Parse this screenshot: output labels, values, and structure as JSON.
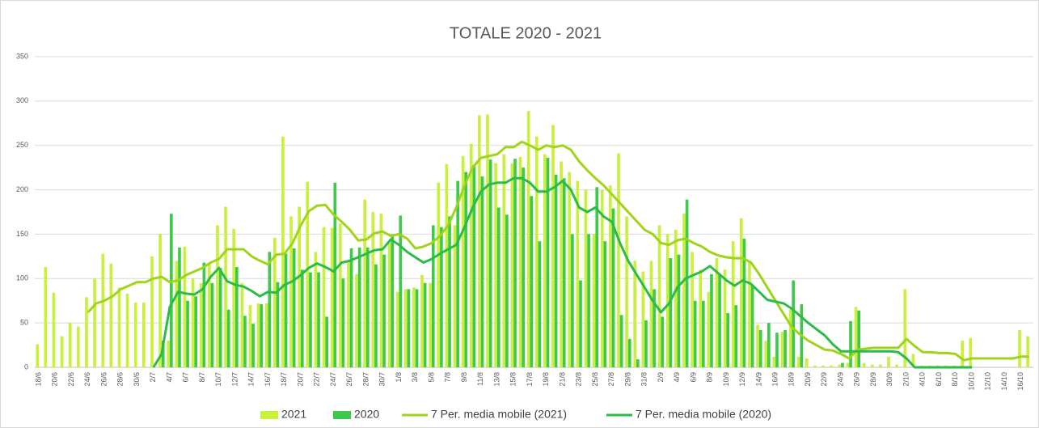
{
  "chart_data": {
    "type": "bar",
    "title": "TOTALE 2020 - 2021",
    "categories": [
      "18/6",
      null,
      "20/6",
      null,
      "22/6",
      null,
      "24/6",
      null,
      "26/6",
      null,
      "28/6",
      null,
      "30/6",
      null,
      "2/7",
      null,
      "4/7",
      null,
      "6/7",
      null,
      "8/7",
      null,
      "10/7",
      null,
      "12/7",
      null,
      "14/7",
      null,
      "16/7",
      null,
      "18/7",
      null,
      "20/7",
      null,
      "22/7",
      null,
      "24/7",
      null,
      "26/7",
      null,
      "28/7",
      null,
      "30/7",
      null,
      "1/8",
      null,
      "3/8",
      null,
      "5/8",
      null,
      "7/8",
      null,
      "9/8",
      null,
      "11/8",
      null,
      "13/8",
      null,
      "15/8",
      null,
      "17/8",
      null,
      "19/8",
      null,
      "21/8",
      null,
      "23/8",
      null,
      "25/8",
      null,
      "27/8",
      null,
      "29/8",
      null,
      "31/8",
      null,
      "2/9",
      null,
      "4/9",
      null,
      "6/9",
      null,
      "8/9",
      null,
      "10/9",
      null,
      "12/9",
      null,
      "14/9",
      null,
      "16/9",
      null,
      "18/9",
      null,
      "20/9",
      null,
      "22/9",
      null,
      "24/9",
      null,
      "26/9",
      null,
      "28/9",
      null,
      "30/9",
      null,
      "2/10",
      null,
      "4/10",
      null,
      "6/10",
      null,
      "8/10",
      null,
      "10/10",
      null,
      "12/10",
      null,
      "14/10",
      null,
      "16/10",
      null
    ],
    "series": [
      {
        "name": "2021",
        "type": "bar",
        "color": "#c8f03c",
        "values": [
          26,
          113,
          84,
          35,
          50,
          46,
          79,
          100,
          128,
          117,
          90,
          83,
          73,
          73,
          125,
          150,
          30,
          120,
          136,
          100,
          95,
          118,
          160,
          181,
          156,
          95,
          70,
          72,
          72,
          146,
          260,
          170,
          181,
          209,
          130,
          158,
          157,
          162,
          120,
          105,
          189,
          175,
          173,
          140,
          85,
          88,
          90,
          104,
          95,
          208,
          229,
          160,
          238,
          252,
          284,
          285,
          230,
          240,
          230,
          237,
          289,
          260,
          240,
          273,
          232,
          220,
          210,
          200,
          150,
          200,
          205,
          241,
          170,
          120,
          108,
          120,
          160,
          150,
          155,
          173,
          130,
          110,
          85,
          123,
          110,
          142,
          168,
          120,
          48,
          30,
          12,
          40,
          65,
          12,
          10,
          2,
          2,
          2,
          3,
          5,
          68,
          5,
          3,
          3,
          12,
          3,
          88,
          15,
          2,
          2,
          2,
          2,
          2,
          30,
          33,
          0,
          0,
          0,
          0,
          0,
          42,
          35
        ]
      },
      {
        "name": "2020",
        "type": "bar",
        "color": "#3ec94a",
        "values": [
          null,
          null,
          null,
          null,
          null,
          null,
          null,
          null,
          null,
          null,
          null,
          null,
          null,
          null,
          null,
          30,
          173,
          135,
          75,
          80,
          118,
          95,
          112,
          65,
          113,
          58,
          49,
          71,
          130,
          96,
          128,
          134,
          110,
          107,
          107,
          57,
          208,
          100,
          134,
          135,
          135,
          116,
          127,
          150,
          171,
          88,
          88,
          95,
          160,
          158,
          170,
          210,
          220,
          228,
          215,
          234,
          180,
          172,
          235,
          225,
          193,
          142,
          236,
          217,
          213,
          150,
          98,
          150,
          203,
          142,
          179,
          59,
          32,
          9,
          53,
          88,
          57,
          123,
          127,
          189,
          75,
          75,
          105,
          105,
          61,
          70,
          145,
          93,
          42,
          50,
          39,
          42,
          98,
          71,
          0,
          0,
          0,
          0,
          5,
          52,
          64,
          0,
          0,
          0,
          0,
          0,
          0,
          0,
          0,
          0,
          0,
          0,
          0,
          0,
          0,
          0,
          0,
          0,
          0,
          0,
          0,
          0
        ]
      },
      {
        "name": "7 Per. media mobile (2021)",
        "type": "line",
        "color": "#9fd41a",
        "values": [
          null,
          null,
          null,
          null,
          null,
          null,
          62,
          72,
          75,
          80,
          88,
          92,
          96,
          96,
          100,
          102,
          96,
          98,
          104,
          108,
          112,
          118,
          122,
          133,
          133,
          133,
          125,
          120,
          116,
          127,
          128,
          140,
          160,
          176,
          182,
          183,
          172,
          164,
          155,
          143,
          144,
          151,
          153,
          148,
          150,
          145,
          134,
          136,
          140,
          148,
          160,
          180,
          205,
          225,
          236,
          238,
          240,
          248,
          248,
          254,
          250,
          245,
          250,
          248,
          250,
          245,
          232,
          222,
          213,
          205,
          195,
          185,
          175,
          165,
          155,
          150,
          140,
          138,
          143,
          145,
          140,
          136,
          130,
          126,
          124,
          123,
          123,
          118,
          105,
          90,
          75,
          60,
          45,
          37,
          30,
          25,
          20,
          19,
          15,
          10,
          20,
          21,
          22,
          22,
          22,
          22,
          32,
          24,
          17,
          17,
          16,
          16,
          15,
          8,
          10,
          10,
          10,
          10,
          10,
          10,
          12,
          12
        ]
      },
      {
        "name": "7 Per. media mobile (2020)",
        "type": "line",
        "color": "#2dbb48",
        "values": [
          null,
          null,
          null,
          null,
          null,
          null,
          null,
          null,
          null,
          null,
          null,
          null,
          null,
          null,
          0,
          15,
          68,
          85,
          83,
          82,
          88,
          102,
          112,
          97,
          93,
          91,
          86,
          80,
          85,
          84,
          93,
          97,
          104,
          112,
          117,
          113,
          108,
          118,
          120,
          124,
          128,
          132,
          133,
          144,
          138,
          130,
          124,
          118,
          122,
          128,
          133,
          138,
          158,
          180,
          198,
          206,
          208,
          208,
          213,
          213,
          208,
          198,
          198,
          203,
          210,
          200,
          180,
          175,
          180,
          170,
          164,
          140,
          120,
          105,
          90,
          75,
          62,
          72,
          90,
          100,
          104,
          108,
          114,
          106,
          98,
          92,
          98,
          94,
          85,
          76,
          74,
          72,
          66,
          58,
          50,
          43,
          36,
          26,
          18,
          18,
          18,
          18,
          18,
          18,
          18,
          17,
          10,
          0,
          0,
          0,
          0,
          0,
          0,
          0,
          0,
          null,
          null,
          null,
          null,
          null,
          null,
          null
        ]
      }
    ],
    "ylim": [
      0,
      350
    ],
    "yticks": [
      0,
      50,
      100,
      150,
      200,
      250,
      300,
      350
    ],
    "grid": true,
    "legend": "bottom"
  }
}
